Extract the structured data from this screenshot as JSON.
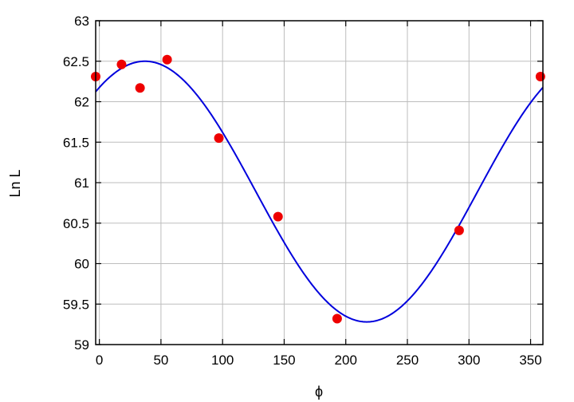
{
  "chart_data": {
    "type": "scatter",
    "title": "",
    "xlabel": "ϕ",
    "ylabel": "Ln L",
    "xlim": [
      -3,
      360
    ],
    "ylim": [
      59,
      63
    ],
    "xticks": [
      0,
      50,
      100,
      150,
      200,
      250,
      300,
      350
    ],
    "xtick_labels": [
      "0",
      "50",
      "100",
      "150",
      "200",
      "250",
      "300",
      "350"
    ],
    "yticks": [
      59,
      59.5,
      60,
      60.5,
      61,
      61.5,
      62,
      62.5,
      63
    ],
    "ytick_labels": [
      "59",
      "59.5",
      "60",
      "60.5",
      "61",
      "61.5",
      "62",
      "62.5",
      "63"
    ],
    "grid": true,
    "series": [
      {
        "kind": "points",
        "color": "#ee0000",
        "x": [
          -3,
          18,
          33,
          55,
          97,
          145,
          193,
          292,
          358
        ],
        "y": [
          62.31,
          62.46,
          62.17,
          62.52,
          61.55,
          60.58,
          59.32,
          60.41,
          62.31
        ]
      },
      {
        "kind": "line",
        "color": "#0000dd",
        "model": "sinusoid",
        "mean": 60.89,
        "amplitude": 1.61,
        "phase_deg": 37
      }
    ]
  }
}
